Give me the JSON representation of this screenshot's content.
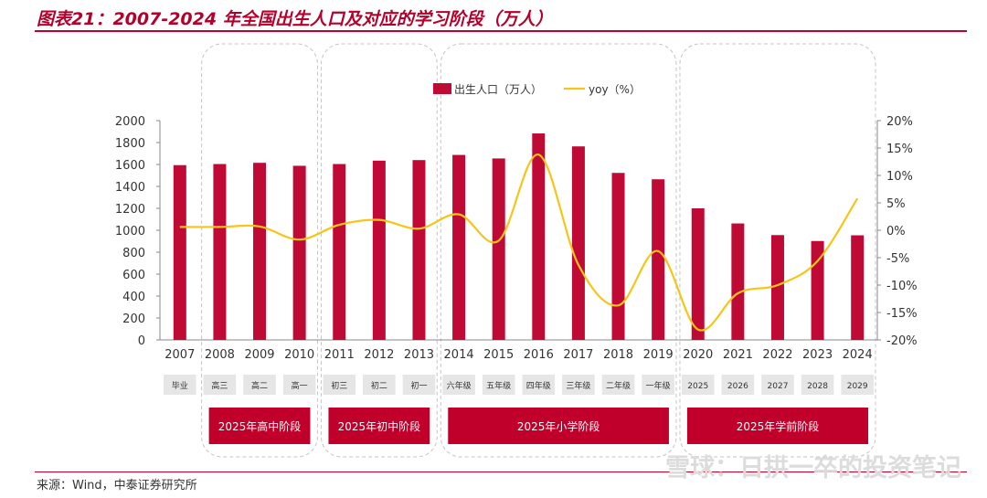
{
  "header": {
    "title": "图表21：2007-2024 年全国出生人口及对应的学习阶段（万人）"
  },
  "footer": {
    "source": "来源：Wind，中泰证券研究所"
  },
  "watermark": {
    "text": "雪球：日拱一卒的投资笔记"
  },
  "colors": {
    "bar": "#c00a36",
    "line": "#f5c518",
    "accent": "#c0002a"
  },
  "chart_data": {
    "type": "bar+line",
    "categories": [
      "2007",
      "2008",
      "2009",
      "2010",
      "2011",
      "2012",
      "2013",
      "2014",
      "2015",
      "2016",
      "2017",
      "2018",
      "2019",
      "2020",
      "2021",
      "2022",
      "2023",
      "2024"
    ],
    "stages": [
      "毕业",
      "高三",
      "高二",
      "高一",
      "初三",
      "初二",
      "初一",
      "六年级",
      "五年级",
      "四年级",
      "三年级",
      "二年级",
      "一年级",
      "2025",
      "2026",
      "2027",
      "2028",
      "2029"
    ],
    "series": [
      {
        "name": "出生人口（万人）",
        "type": "bar",
        "axis": "left",
        "values": [
          1594,
          1604,
          1615,
          1588,
          1604,
          1635,
          1640,
          1687,
          1655,
          1883,
          1765,
          1523,
          1465,
          1200,
          1062,
          956,
          902,
          954
        ]
      },
      {
        "name": "yoy（%）",
        "type": "line",
        "axis": "right",
        "values": [
          0.6,
          0.6,
          0.7,
          -1.7,
          1.0,
          1.9,
          0.3,
          2.9,
          -1.9,
          13.8,
          -6.3,
          -13.7,
          -3.8,
          -18.1,
          -11.5,
          -10.0,
          -5.6,
          5.8
        ]
      }
    ],
    "left_axis": {
      "min": 0,
      "max": 2000,
      "ticks": [
        "0",
        "200",
        "400",
        "600",
        "800",
        "1000",
        "1200",
        "1400",
        "1600",
        "1800",
        "2000"
      ]
    },
    "right_axis": {
      "min": -20,
      "max": 20,
      "ticks": [
        "-20%",
        "-15%",
        "-10%",
        "-5%",
        "0%",
        "5%",
        "10%",
        "15%",
        "20%"
      ]
    },
    "groups": [
      {
        "label": "2025年高中阶段",
        "from": 1,
        "to": 3
      },
      {
        "label": "2025年初中阶段",
        "from": 4,
        "to": 6
      },
      {
        "label": "2025年小学阶段",
        "from": 7,
        "to": 12
      },
      {
        "label": "2025年学前阶段",
        "from": 13,
        "to": 17
      }
    ],
    "legend_position": "top-center",
    "grid": false
  }
}
